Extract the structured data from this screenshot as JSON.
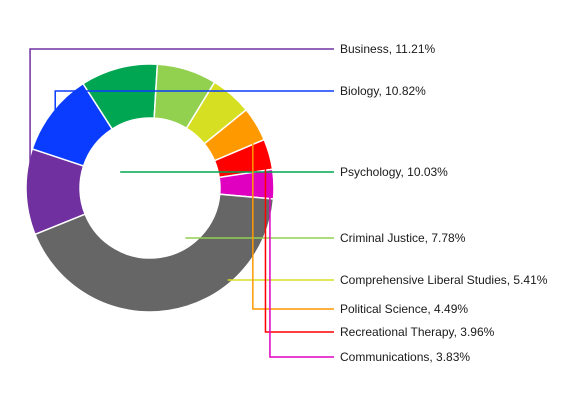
{
  "chart_data": {
    "type": "pie",
    "style": "donut",
    "title": "",
    "slices": [
      {
        "label": "Business, 11.21%",
        "name": "Business",
        "value": 11.21,
        "color": "#7030a0"
      },
      {
        "label": "Biology, 10.82%",
        "name": "Biology",
        "value": 10.82,
        "color": "#0a3cff"
      },
      {
        "label": "Psychology, 10.03%",
        "name": "Psychology",
        "value": 10.03,
        "color": "#00a651"
      },
      {
        "label": "Criminal Justice, 7.78%",
        "name": "Criminal Justice",
        "value": 7.78,
        "color": "#92d050"
      },
      {
        "label": "Comprehensive Liberal Studies, 5.41%",
        "name": "Comprehensive Liberal Studies",
        "value": 5.41,
        "color": "#d7df23"
      },
      {
        "label": "Political Science, 4.49%",
        "name": "Political Science",
        "value": 4.49,
        "color": "#ff9900"
      },
      {
        "label": "Recreational Therapy, 3.96%",
        "name": "Recreational Therapy",
        "value": 3.96,
        "color": "#ff0000"
      },
      {
        "label": "Communications, 3.83%",
        "name": "Communications",
        "value": 3.83,
        "color": "#e000c0"
      },
      {
        "label": "",
        "name": "",
        "value": 42.47,
        "color": "#666666"
      }
    ],
    "legend": "callout labels on the right",
    "grid": false
  }
}
